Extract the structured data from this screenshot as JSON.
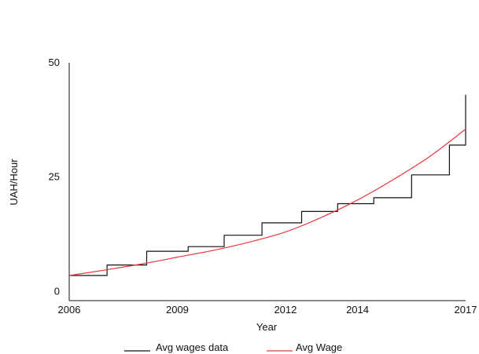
{
  "chart_data": {
    "type": "line",
    "title": "",
    "xlabel": "Year",
    "ylabel": "UAH/Hour",
    "xlim": [
      2006,
      2017
    ],
    "ylim": [
      -2,
      50
    ],
    "x_ticks": [
      2006,
      2009,
      2012,
      2014,
      2017
    ],
    "y_ticks": [
      0,
      25,
      50
    ],
    "grid": false,
    "legend_position": "bottom",
    "series": [
      {
        "name": "Avg wages data",
        "color": "#111111",
        "style": "step",
        "x": [
          2006.0,
          2007.05,
          2007.05,
          2008.15,
          2008.15,
          2009.3,
          2009.3,
          2010.3,
          2010.3,
          2011.35,
          2011.35,
          2012.45,
          2012.45,
          2013.45,
          2013.45,
          2014.45,
          2014.45,
          2015.5,
          2015.5,
          2016.55,
          2016.55,
          2017.0,
          2017.0
        ],
        "y": [
          3.5,
          3.5,
          5.8,
          5.8,
          8.8,
          8.8,
          9.8,
          9.8,
          12.3,
          12.3,
          15.0,
          15.0,
          17.5,
          17.5,
          19.2,
          19.2,
          20.5,
          20.5,
          25.5,
          25.5,
          32.0,
          32.0,
          43.0
        ]
      },
      {
        "name": "Avg Wage",
        "color": "#e8383d",
        "style": "smooth",
        "x": [
          2006,
          2007,
          2008,
          2009,
          2010,
          2011,
          2012,
          2013,
          2014,
          2015,
          2016,
          2017
        ],
        "y": [
          3.5,
          4.7,
          6.0,
          7.5,
          9.0,
          10.8,
          13.0,
          16.2,
          20.0,
          24.5,
          29.5,
          35.5
        ]
      }
    ]
  }
}
